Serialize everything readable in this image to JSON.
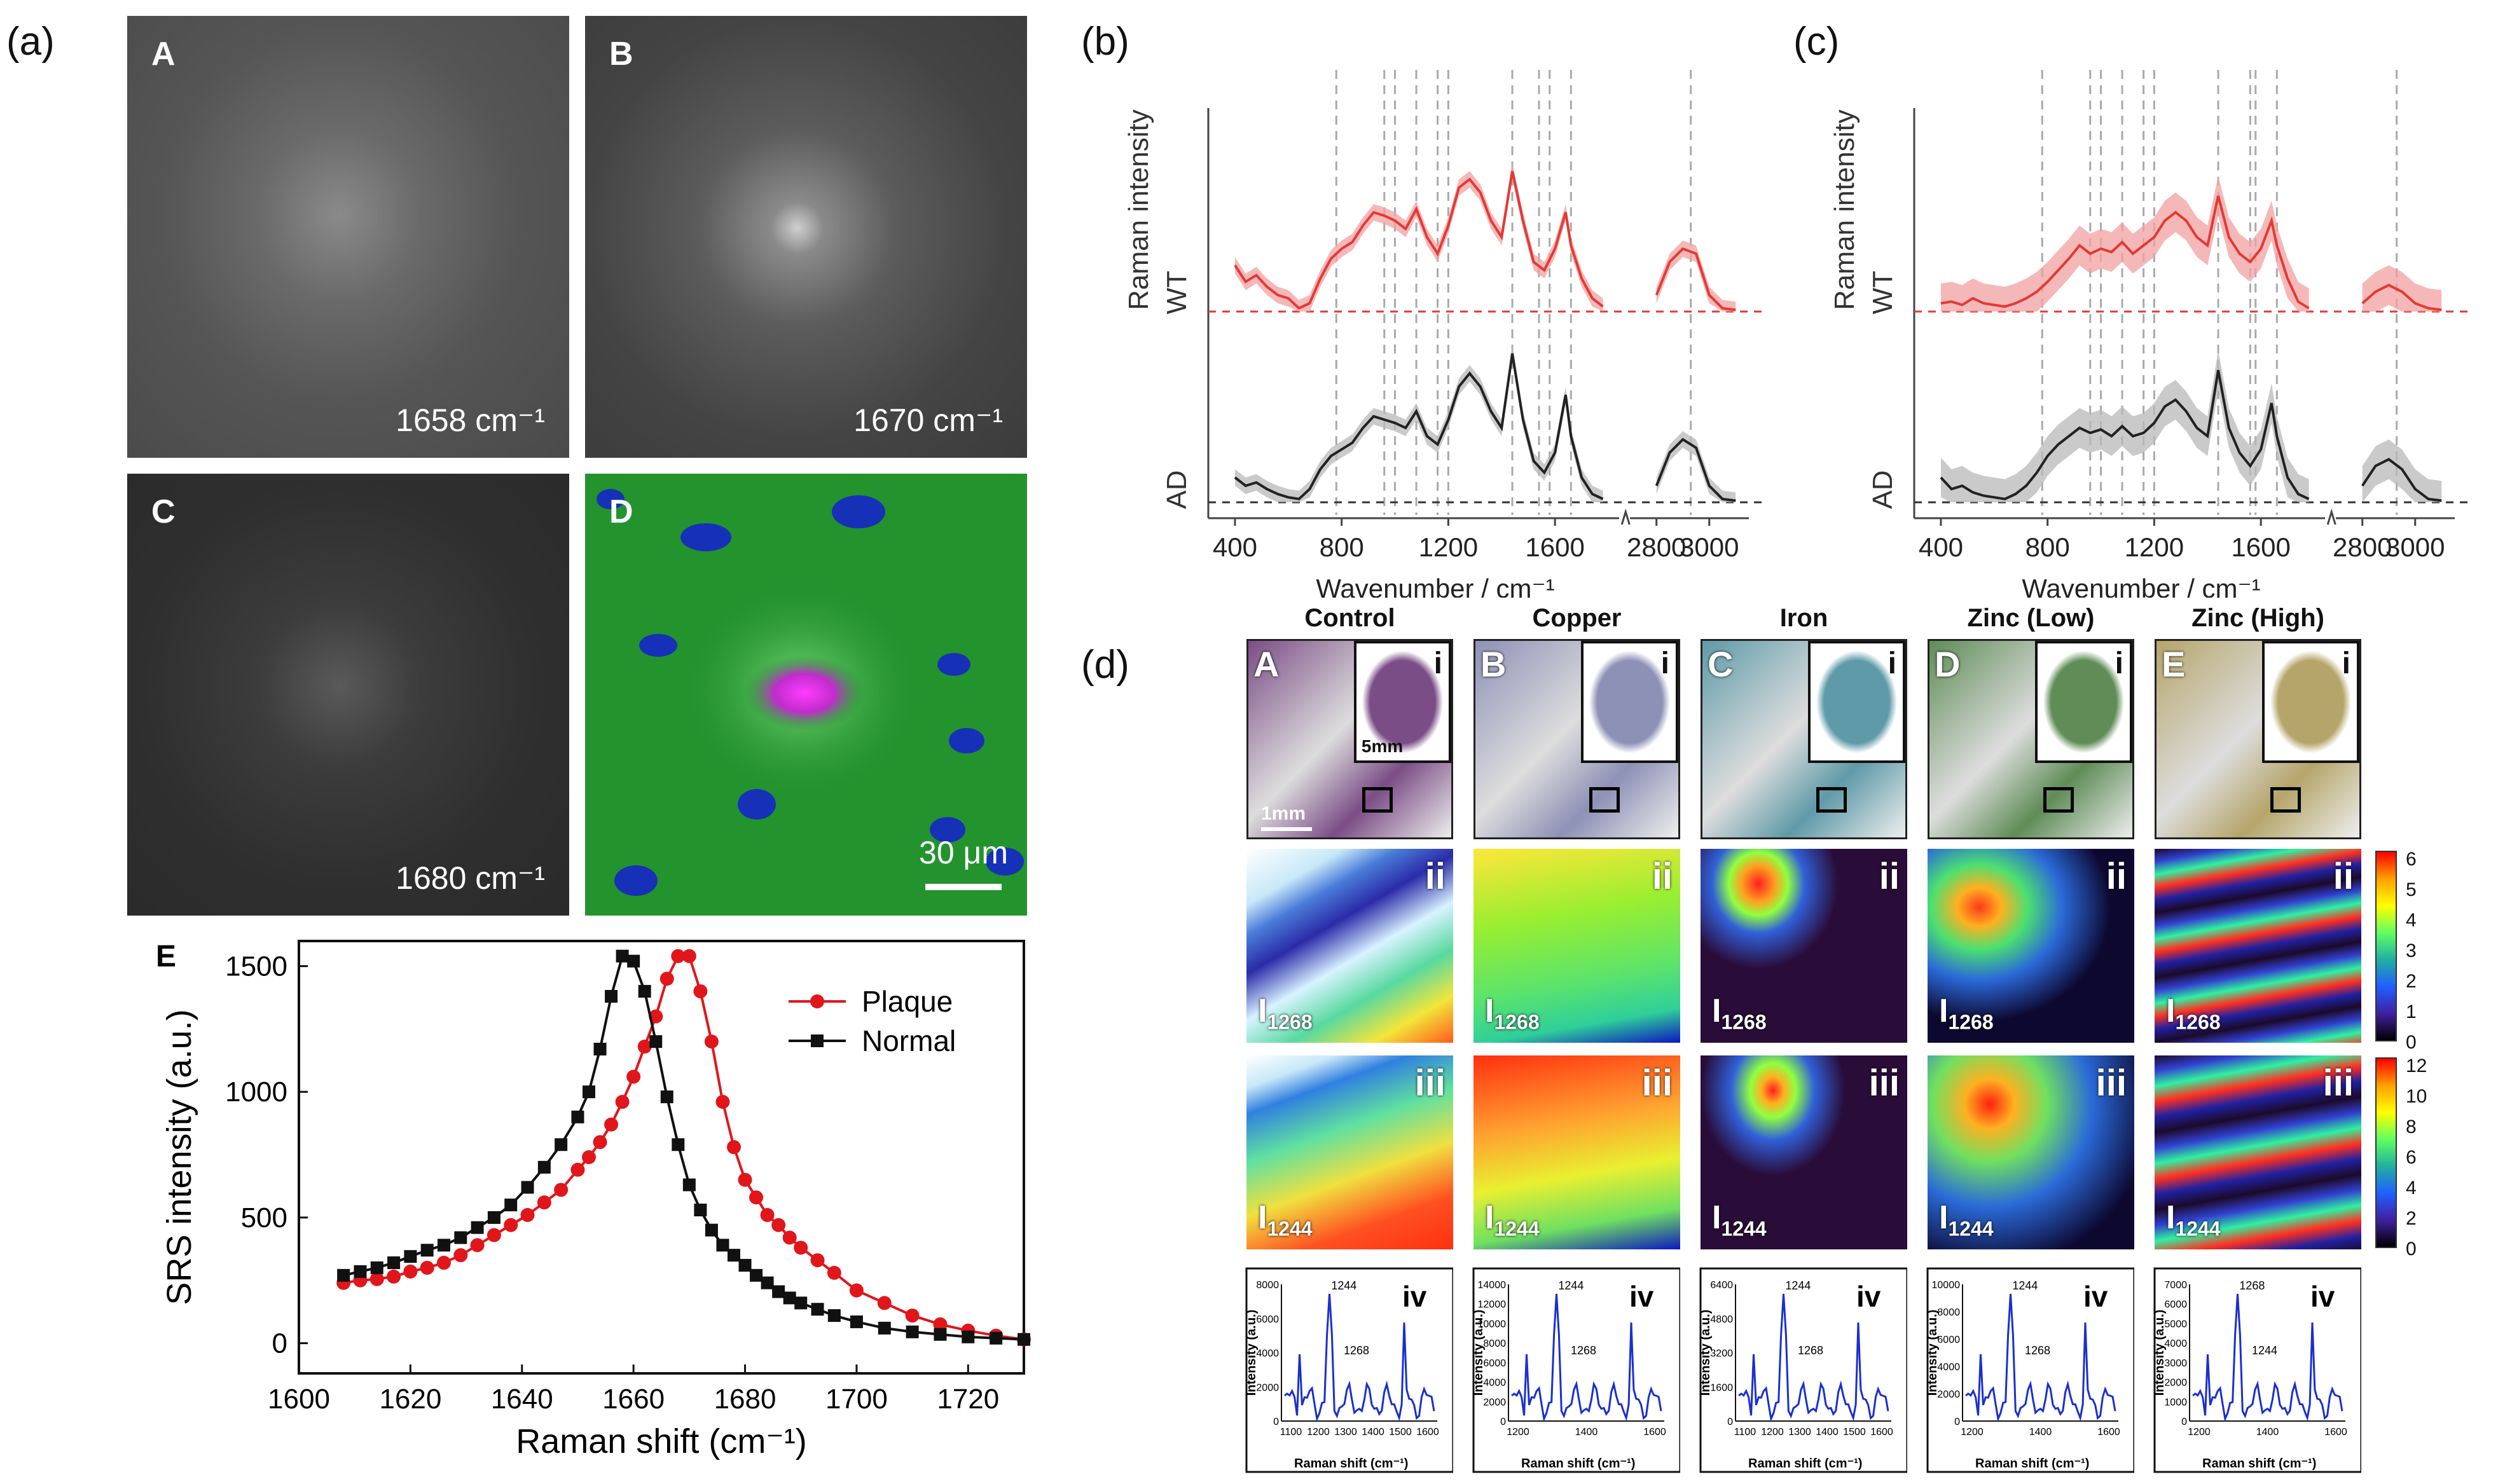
{
  "panel_a": {
    "tag": "(a)",
    "images": [
      {
        "letter": "A",
        "wavenumber": "1658 cm⁻¹"
      },
      {
        "letter": "B",
        "wavenumber": "1670 cm⁻¹"
      },
      {
        "letter": "C",
        "wavenumber": "1680 cm⁻¹"
      },
      {
        "letter": "D",
        "scalebar": "30 μm"
      }
    ],
    "plot_letter": "E"
  },
  "panel_b": {
    "tag": "(b)"
  },
  "panel_c": {
    "tag": "(c)"
  },
  "panel_d": {
    "tag": "(d)",
    "columns": [
      "Control",
      "Copper",
      "Iron",
      "Zinc (Low)",
      "Zinc (High)"
    ],
    "letters": [
      "A",
      "B",
      "C",
      "D",
      "E"
    ],
    "inset_label": "i",
    "row_labels": [
      "ii",
      "iii",
      "iv"
    ],
    "intensity_1268": "I",
    "sub_1268": "1268",
    "sub_1244": "1244",
    "scale_5mm": "5mm",
    "scale_1mm": "1mm",
    "colorbar_top_ticks": [
      "6",
      "5",
      "4",
      "3",
      "2",
      "1",
      "0"
    ],
    "colorbar_bottom_ticks": [
      "12",
      "10",
      "8",
      "6",
      "4",
      "2",
      "0"
    ],
    "spectra": [
      {
        "peak_labels": [
          "1244",
          "1268"
        ],
        "yticks": [
          "8000",
          "6000",
          "4000",
          "2000",
          "0"
        ],
        "xticks": [
          "1100",
          "1200",
          "1300",
          "1400",
          "1500",
          "1600"
        ]
      },
      {
        "peak_labels": [
          "1244",
          "1268"
        ],
        "yticks": [
          "14000",
          "12000",
          "10000",
          "8000",
          "6000",
          "4000",
          "2000",
          "0"
        ],
        "xticks": [
          "1200",
          "1400",
          "1600"
        ]
      },
      {
        "peak_labels": [
          "1244",
          "1268"
        ],
        "yticks": [
          "6400",
          "4800",
          "3200",
          "1600",
          "0"
        ],
        "xticks": [
          "1100",
          "1200",
          "1300",
          "1400",
          "1500",
          "1600"
        ]
      },
      {
        "peak_labels": [
          "1244",
          "1268"
        ],
        "yticks": [
          "10000",
          "8000",
          "6000",
          "4000",
          "2000",
          "0"
        ],
        "xticks": [
          "1200",
          "1400",
          "1600"
        ]
      },
      {
        "peak_labels": [
          "1268",
          "1244"
        ],
        "yticks": [
          "7000",
          "6000",
          "5000",
          "4000",
          "3000",
          "2000",
          "1000",
          "0"
        ],
        "xticks": [
          "1200",
          "1400",
          "1600"
        ]
      }
    ],
    "spectra_ylabel": "Intensity (a.u.)",
    "spectra_xlabel": "Raman shift (cm⁻¹)"
  },
  "chart_data": [
    {
      "type": "line",
      "panel": "E",
      "xlabel": "Raman shift (cm⁻¹)",
      "ylabel": "SRS intensity (a.u.)",
      "xlim": [
        1600,
        1730
      ],
      "ylim": [
        -120,
        1600
      ],
      "xticks": [
        1600,
        1620,
        1640,
        1660,
        1680,
        1700,
        1720
      ],
      "yticks": [
        0,
        500,
        1000,
        1500
      ],
      "legend": "top-right",
      "series": [
        {
          "name": "Plaque",
          "color": "#e0161b",
          "x": [
            1608,
            1611,
            1614,
            1617,
            1620,
            1623,
            1626,
            1629,
            1632,
            1635,
            1638,
            1641,
            1644,
            1647,
            1650,
            1652,
            1654,
            1656,
            1658,
            1660,
            1662,
            1664,
            1666,
            1668,
            1670,
            1672,
            1674,
            1676,
            1678,
            1680,
            1682,
            1684,
            1686,
            1688,
            1690,
            1693,
            1696,
            1700,
            1705,
            1710,
            1715,
            1720,
            1725,
            1730
          ],
          "y": [
            240,
            250,
            255,
            265,
            285,
            300,
            320,
            350,
            390,
            430,
            470,
            510,
            560,
            610,
            690,
            740,
            800,
            870,
            960,
            1060,
            1180,
            1300,
            1450,
            1540,
            1540,
            1400,
            1200,
            960,
            780,
            650,
            580,
            510,
            470,
            420,
            380,
            330,
            280,
            210,
            160,
            110,
            75,
            50,
            30,
            15
          ]
        },
        {
          "name": "Normal",
          "color": "#111111",
          "x": [
            1608,
            1611,
            1614,
            1617,
            1620,
            1623,
            1626,
            1629,
            1632,
            1635,
            1638,
            1641,
            1644,
            1647,
            1650,
            1652,
            1654,
            1656,
            1658,
            1660,
            1662,
            1664,
            1666,
            1668,
            1670,
            1672,
            1674,
            1676,
            1678,
            1680,
            1682,
            1684,
            1686,
            1688,
            1690,
            1693,
            1696,
            1700,
            1705,
            1710,
            1715,
            1720,
            1725,
            1730
          ],
          "y": [
            270,
            285,
            300,
            320,
            345,
            370,
            390,
            420,
            460,
            500,
            550,
            620,
            700,
            790,
            900,
            1000,
            1170,
            1380,
            1540,
            1520,
            1400,
            1200,
            980,
            790,
            630,
            530,
            450,
            390,
            350,
            310,
            270,
            240,
            205,
            180,
            160,
            135,
            110,
            85,
            60,
            45,
            35,
            25,
            20,
            15
          ]
        }
      ]
    },
    {
      "type": "line",
      "panel": "(b)",
      "xlabel": "Wavenumber / cm⁻¹",
      "ylabel": "Raman intensity",
      "series_labels": [
        "WT",
        "AD"
      ],
      "xticks": [
        400,
        800,
        1200,
        1600,
        2800,
        3000
      ],
      "axis_break": true,
      "series": [
        {
          "name": "WT",
          "color": "#e53935",
          "x": [
            400,
            440,
            480,
            520,
            560,
            600,
            640,
            680,
            720,
            760,
            800,
            840,
            880,
            920,
            960,
            1000,
            1040,
            1080,
            1120,
            1160,
            1200,
            1240,
            1280,
            1320,
            1360,
            1400,
            1440,
            1480,
            1520,
            1560,
            1600,
            1640,
            1660,
            1700,
            1740,
            1780,
            2800,
            2850,
            2900,
            2950,
            3000,
            3050,
            3100
          ],
          "y": [
            0.28,
            0.18,
            0.22,
            0.15,
            0.1,
            0.08,
            0.02,
            0.05,
            0.2,
            0.32,
            0.38,
            0.42,
            0.52,
            0.6,
            0.58,
            0.55,
            0.5,
            0.62,
            0.45,
            0.35,
            0.52,
            0.75,
            0.8,
            0.72,
            0.55,
            0.45,
            0.85,
            0.55,
            0.3,
            0.25,
            0.38,
            0.6,
            0.4,
            0.2,
            0.08,
            0.03,
            0.1,
            0.3,
            0.38,
            0.35,
            0.1,
            0.02,
            0.01
          ]
        },
        {
          "name": "AD",
          "color": "#222222",
          "x": [
            400,
            440,
            480,
            520,
            560,
            600,
            640,
            680,
            720,
            760,
            800,
            840,
            880,
            920,
            960,
            1000,
            1040,
            1080,
            1120,
            1160,
            1200,
            1240,
            1280,
            1320,
            1360,
            1400,
            1440,
            1480,
            1520,
            1560,
            1600,
            1640,
            1660,
            1700,
            1740,
            1780,
            2800,
            2850,
            2900,
            2950,
            3000,
            3050,
            3100
          ],
          "y": [
            0.15,
            0.1,
            0.12,
            0.08,
            0.05,
            0.03,
            0.02,
            0.08,
            0.2,
            0.28,
            0.32,
            0.36,
            0.45,
            0.52,
            0.5,
            0.48,
            0.45,
            0.55,
            0.4,
            0.35,
            0.5,
            0.7,
            0.78,
            0.7,
            0.55,
            0.45,
            0.9,
            0.5,
            0.25,
            0.18,
            0.3,
            0.65,
            0.4,
            0.15,
            0.05,
            0.02,
            0.1,
            0.3,
            0.38,
            0.33,
            0.1,
            0.02,
            0.01
          ]
        }
      ]
    },
    {
      "type": "line",
      "panel": "(c)",
      "xlabel": "Wavenumber / cm⁻¹",
      "ylabel": "Raman intensity",
      "series_labels": [
        "WT",
        "AD"
      ],
      "xticks": [
        400,
        800,
        1200,
        1600,
        2800,
        3000
      ],
      "axis_break": true,
      "series": [
        {
          "name": "WT",
          "color": "#e53935",
          "x": [
            400,
            440,
            480,
            520,
            560,
            600,
            640,
            680,
            720,
            760,
            800,
            840,
            880,
            920,
            960,
            1000,
            1040,
            1080,
            1120,
            1160,
            1200,
            1240,
            1280,
            1320,
            1360,
            1400,
            1440,
            1480,
            1520,
            1560,
            1600,
            1640,
            1660,
            1700,
            1740,
            1780,
            2800,
            2850,
            2900,
            2950,
            3000,
            3050,
            3100
          ],
          "y": [
            0.05,
            0.06,
            0.04,
            0.08,
            0.05,
            0.04,
            0.03,
            0.05,
            0.08,
            0.12,
            0.18,
            0.25,
            0.32,
            0.4,
            0.35,
            0.38,
            0.36,
            0.42,
            0.35,
            0.4,
            0.45,
            0.55,
            0.6,
            0.55,
            0.45,
            0.4,
            0.7,
            0.45,
            0.35,
            0.3,
            0.38,
            0.55,
            0.4,
            0.2,
            0.06,
            0.02,
            0.05,
            0.12,
            0.16,
            0.12,
            0.05,
            0.02,
            0.01
          ]
        },
        {
          "name": "AD",
          "color": "#222222",
          "x": [
            400,
            440,
            480,
            520,
            560,
            600,
            640,
            680,
            720,
            760,
            800,
            840,
            880,
            920,
            960,
            1000,
            1040,
            1080,
            1120,
            1160,
            1200,
            1240,
            1280,
            1320,
            1360,
            1400,
            1440,
            1480,
            1520,
            1560,
            1600,
            1640,
            1660,
            1700,
            1740,
            1780,
            2800,
            2850,
            2900,
            2950,
            3000,
            3050,
            3100
          ],
          "y": [
            0.15,
            0.08,
            0.1,
            0.06,
            0.04,
            0.03,
            0.02,
            0.05,
            0.1,
            0.18,
            0.28,
            0.35,
            0.4,
            0.45,
            0.42,
            0.44,
            0.4,
            0.46,
            0.4,
            0.42,
            0.48,
            0.58,
            0.62,
            0.55,
            0.45,
            0.4,
            0.8,
            0.45,
            0.3,
            0.22,
            0.32,
            0.6,
            0.4,
            0.15,
            0.05,
            0.02,
            0.1,
            0.22,
            0.26,
            0.2,
            0.08,
            0.02,
            0.01
          ]
        }
      ]
    }
  ]
}
